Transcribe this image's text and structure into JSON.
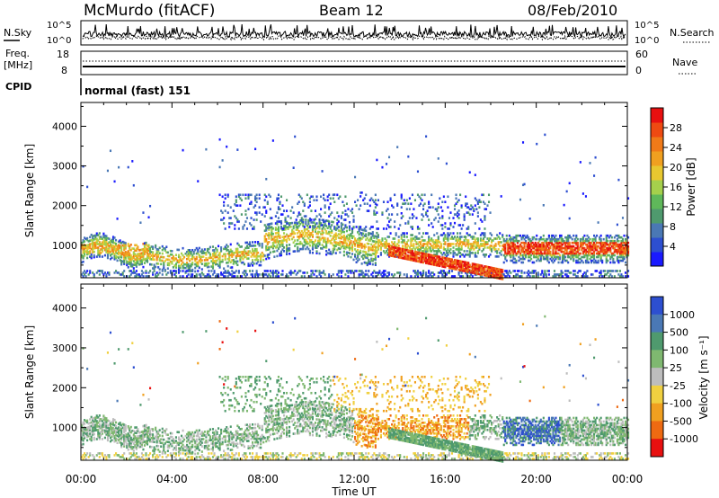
{
  "header": {
    "station": "McMurdo (fitACF)",
    "beam": "Beam 12",
    "date": "08/Feb/2010"
  },
  "strips": {
    "nsky": {
      "left_label": "N.Sky",
      "right_label": "N.Search",
      "ticks_left": [
        "10^5",
        "10^0"
      ],
      "ticks_right": [
        "10^5",
        "10^0"
      ]
    },
    "freq": {
      "left_label_1": "Freq.",
      "left_label_2": "[MHz]",
      "right_label": "Nave",
      "ticks_left": [
        "18",
        "8"
      ],
      "ticks_right": [
        "60",
        "0"
      ]
    },
    "cpid": {
      "label": "CPID",
      "value": "normal (fast) 151"
    }
  },
  "chart_data": [
    {
      "type": "heatmap",
      "name": "power",
      "ylabel": "Slant Range [km]",
      "ylim": [
        180,
        4600
      ],
      "yticks": [
        1000,
        2000,
        3000,
        4000
      ],
      "xlim": [
        0,
        24
      ],
      "xticks": [
        "00:00",
        "04:00",
        "08:00",
        "12:00",
        "16:00",
        "20:00",
        "00:00"
      ],
      "colorbar": {
        "label": "Power [dB]",
        "range": [
          0,
          32
        ],
        "tick_labels": [
          "4",
          "8",
          "12",
          "16",
          "20",
          "24",
          "28"
        ],
        "tick_values": [
          4,
          8,
          12,
          16,
          20,
          24,
          28
        ],
        "colors": [
          "#1a1aff",
          "#2d4fd0",
          "#4a78b5",
          "#4f9a6e",
          "#5fb85a",
          "#a5d04c",
          "#e8c830",
          "#f0a020",
          "#f07a18",
          "#ee4a12",
          "#e81010"
        ]
      },
      "features": [
        {
          "label": "main echo band",
          "t_start": 0,
          "t_end": 24,
          "range_km": [
            600,
            1200
          ]
        },
        {
          "label": "descending echo",
          "t_start": 13.5,
          "t_end": 18.5,
          "range_km": [
            250,
            850
          ],
          "power_db": 28
        }
      ]
    },
    {
      "type": "heatmap",
      "name": "velocity",
      "ylabel": "Slant Range [km]",
      "ylim": [
        180,
        4600
      ],
      "yticks": [
        1000,
        2000,
        3000,
        4000
      ],
      "xlim": [
        0,
        24
      ],
      "xticks": [
        "00:00",
        "04:00",
        "08:00",
        "12:00",
        "16:00",
        "20:00",
        "00:00"
      ],
      "xlabel": "Time UT",
      "colorbar": {
        "label": "Velocity [m s⁻¹]",
        "tick_labels": [
          "1000",
          "500",
          "100",
          "25",
          "-25",
          "-100",
          "-500",
          "-1000"
        ],
        "colors": [
          "#2d4fd0",
          "#4a78b5",
          "#4f9a6e",
          "#7fb870",
          "#bdbdbd",
          "#f0d040",
          "#f0a020",
          "#ee6a12",
          "#e81010"
        ]
      }
    }
  ]
}
